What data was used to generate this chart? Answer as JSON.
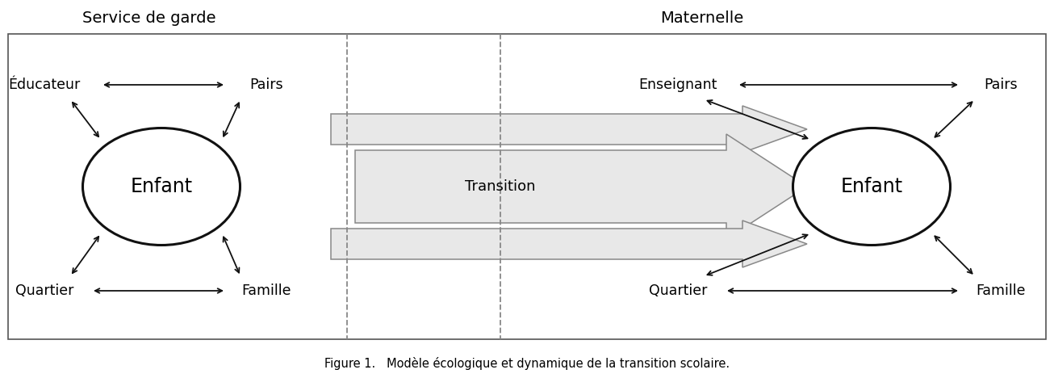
{
  "title": "Figure 1.   Modèle écologique et dynamique de la transition scolaire.",
  "service_label": "Service de garde",
  "maternelle_label": "Maternelle",
  "left_nodes": {
    "top_left": "Éducateur",
    "top_right": "Pairs",
    "bottom_left": "Quartier",
    "bottom_right": "Famille",
    "center": "Enfant"
  },
  "right_nodes": {
    "top_left": "Enseignant",
    "top_right": "Pairs",
    "bottom_left": "Quartier",
    "bottom_right": "Famille",
    "center": "Enfant"
  },
  "transition_label": "Transition",
  "bg_color": "#ffffff",
  "box_edge_color": "#555555",
  "ellipse_color": "#ffffff",
  "ellipse_edge_color": "#111111",
  "arrow_color": "#111111",
  "transition_arrow_facecolor": "#e8e8e8",
  "transition_arrow_edgecolor": "#888888",
  "dashed_line_color": "#888888",
  "font_size_labels": 12.5,
  "font_size_center": 17,
  "font_size_header": 14,
  "font_size_title": 10.5,
  "font_size_transition": 13
}
